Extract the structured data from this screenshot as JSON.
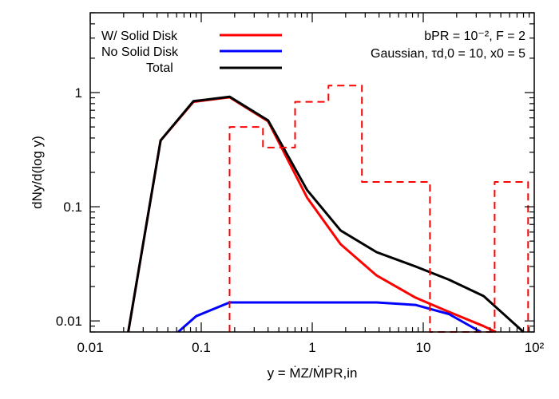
{
  "chart_data": {
    "type": "line",
    "x_scale": "log",
    "y_scale": "log",
    "xlim": [
      0.01,
      100
    ],
    "ylim": [
      0.008,
      5
    ],
    "xlabel": "y = ṀZ/ṀPR,in",
    "ylabel": "dNy/d(log y)",
    "x_ticks": [
      {
        "value": 0.01,
        "label": "0.01"
      },
      {
        "value": 0.1,
        "label": "0.1"
      },
      {
        "value": 1,
        "label": "1"
      },
      {
        "value": 10,
        "label": "10"
      },
      {
        "value": 100,
        "label": "10²"
      }
    ],
    "y_ticks": [
      {
        "value": 0.01,
        "label": "0.01"
      },
      {
        "value": 0.1,
        "label": "0.1"
      },
      {
        "value": 1,
        "label": "1"
      }
    ],
    "annotation": {
      "line1": "bPR = 10⁻², F = 2",
      "line2": "Gaussian, τd,0 = 10, x0 = 5"
    },
    "legend_position": "top-left",
    "series": [
      {
        "name": "W/ Solid Disk",
        "color": "#ff0000",
        "style": "solid",
        "x": [
          0.022,
          0.043,
          0.085,
          0.18,
          0.4,
          0.9,
          1.8,
          3.8,
          8.5,
          17,
          35,
          45
        ],
        "y": [
          0.008,
          0.38,
          0.83,
          0.91,
          0.56,
          0.12,
          0.047,
          0.025,
          0.016,
          0.012,
          0.009,
          0.008
        ]
      },
      {
        "name": "No Solid Disk",
        "color": "#0000ff",
        "style": "solid",
        "x": [
          0.062,
          0.09,
          0.18,
          0.4,
          0.9,
          1.8,
          3.8,
          8.5,
          17,
          33
        ],
        "y": [
          0.008,
          0.011,
          0.0145,
          0.0145,
          0.0145,
          0.0145,
          0.0145,
          0.0138,
          0.0115,
          0.008
        ]
      },
      {
        "name": "Total",
        "color": "#000000",
        "style": "solid",
        "x": [
          0.022,
          0.043,
          0.085,
          0.18,
          0.4,
          0.9,
          1.8,
          3.8,
          8.5,
          17,
          35,
          80
        ],
        "y": [
          0.008,
          0.38,
          0.84,
          0.92,
          0.57,
          0.14,
          0.062,
          0.04,
          0.03,
          0.023,
          0.0165,
          0.008
        ]
      },
      {
        "name": "",
        "color": "#ff0000",
        "style": "dashed-step",
        "x": [
          0.18,
          0.18,
          0.36,
          0.36,
          0.7,
          0.7,
          1.4,
          1.4,
          2.8,
          2.8,
          11.5,
          11.5,
          44,
          44,
          88,
          88
        ],
        "y": [
          0.008,
          0.5,
          0.5,
          0.33,
          0.33,
          0.83,
          0.83,
          1.15,
          1.15,
          0.165,
          0.165,
          0.008,
          0.008,
          0.165,
          0.165,
          0.008
        ]
      }
    ]
  }
}
